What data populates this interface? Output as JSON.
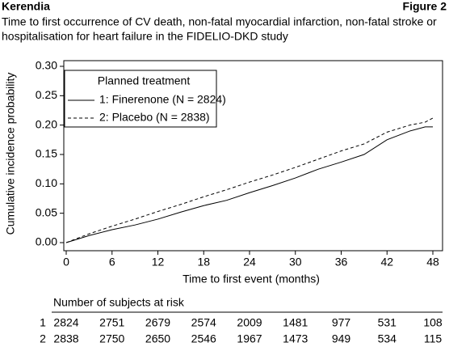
{
  "header": {
    "left": "Kerendia",
    "right": "Figure 2",
    "title": [
      "Time to first occurrence of CV death, non-fatal myocardial infarction, non-fatal stroke or",
      "hospitalisation for heart failure in the FIDELIO-DKD study"
    ]
  },
  "chart_data": {
    "type": "line",
    "xlabel": "Time to first event (months)",
    "ylabel": "Cumulative incidence probability",
    "legend_title": "Planned treatment",
    "legend_position": "upper left",
    "xlim": [
      0,
      48
    ],
    "xticks": [
      0,
      6,
      12,
      18,
      24,
      30,
      36,
      42,
      48
    ],
    "ylim": [
      0,
      0.3
    ],
    "yticks": [
      {
        "value": 0,
        "label": "0.00"
      },
      {
        "value": 0.05,
        "label": "0.05"
      },
      {
        "value": 0.1,
        "label": "0.10"
      },
      {
        "value": 0.15,
        "label": "0.15"
      },
      {
        "value": 0.2,
        "label": "0.20"
      },
      {
        "value": 0.25,
        "label": "0.25"
      },
      {
        "value": 0.3,
        "label": "0.30"
      }
    ],
    "grid": false,
    "x": [
      0,
      3,
      6,
      9,
      12,
      15,
      18,
      21,
      24,
      27,
      30,
      33,
      36,
      39,
      42,
      45,
      47,
      48
    ],
    "series": [
      {
        "name": "1: Finerenone (N = 2824)",
        "color": "#000000",
        "dash": "solid",
        "values": [
          0,
          0.012,
          0.022,
          0.03,
          0.04,
          0.052,
          0.063,
          0.072,
          0.085,
          0.097,
          0.11,
          0.125,
          0.137,
          0.15,
          0.175,
          0.19,
          0.197,
          0.197
        ]
      },
      {
        "name": "2: Placebo (N = 2838)",
        "color": "#000000",
        "dash": "dashed",
        "values": [
          0,
          0.015,
          0.028,
          0.04,
          0.053,
          0.065,
          0.078,
          0.09,
          0.103,
          0.115,
          0.128,
          0.142,
          0.156,
          0.168,
          0.188,
          0.2,
          0.205,
          0.212
        ]
      }
    ]
  },
  "risk_table": {
    "title": "Number of subjects at risk",
    "rows": [
      {
        "label": "1",
        "values": [
          2824,
          2751,
          2679,
          2574,
          2009,
          1481,
          977,
          531,
          108
        ]
      },
      {
        "label": "2",
        "values": [
          2838,
          2750,
          2650,
          2546,
          1967,
          1473,
          949,
          534,
          115
        ]
      }
    ]
  }
}
